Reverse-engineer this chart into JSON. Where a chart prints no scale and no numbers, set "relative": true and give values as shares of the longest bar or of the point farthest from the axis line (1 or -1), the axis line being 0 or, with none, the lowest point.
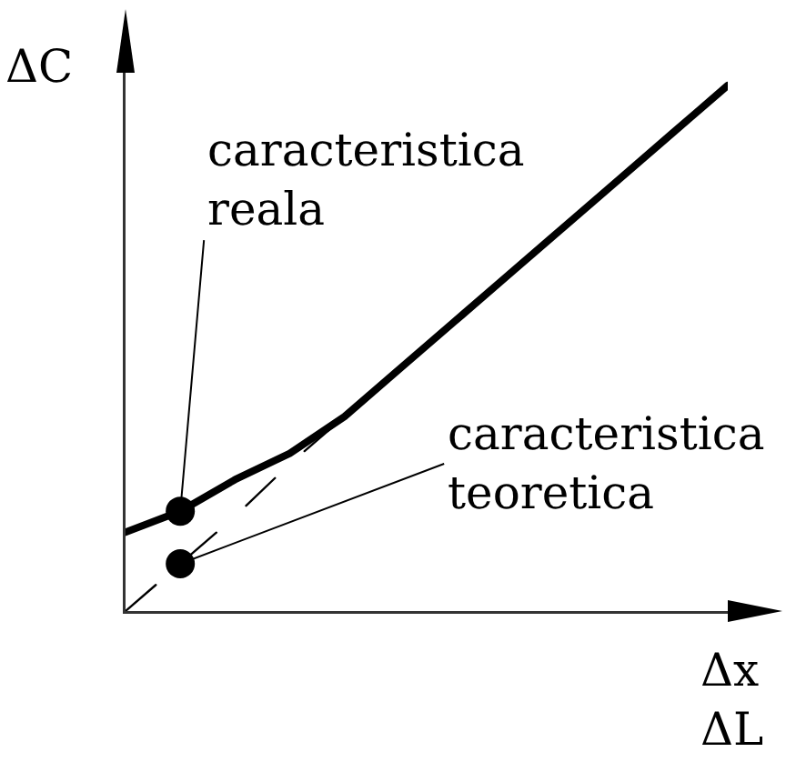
{
  "chart_data": {
    "type": "line",
    "relative": true,
    "xlabel": "Δx\nΔL",
    "ylabel": "ΔC",
    "categories": [
      null,
      null,
      null,
      null,
      null,
      null,
      null,
      null,
      null,
      null,
      null,
      null
    ],
    "series": [
      {
        "name": "caracteristica reala",
        "color": "#000000",
        "line_style": "solid",
        "values": [
          0.15,
          0.19,
          0.25,
          0.3,
          0.37,
          0.46,
          0.55,
          0.64,
          0.73,
          0.82,
          0.91,
          1
        ]
      },
      {
        "name": "caracteristica teoretica",
        "color": "#000000",
        "line_style": "dashed",
        "values": [
          0,
          0.09,
          0.18,
          0.28,
          0.37,
          null,
          null,
          null,
          null,
          null,
          null,
          null
        ]
      }
    ]
  }
}
